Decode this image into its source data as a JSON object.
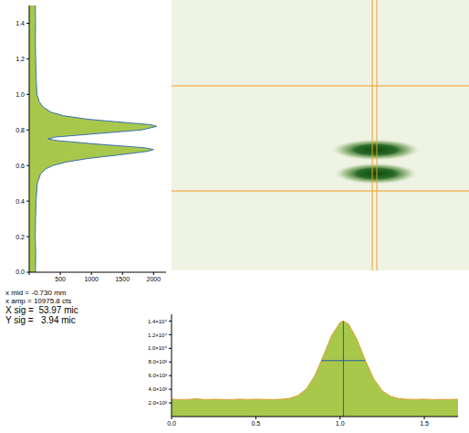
{
  "chart_data": [
    {
      "type": "area",
      "orientation": "horizontal",
      "color": "#a8c84c",
      "y": [
        0,
        0.1,
        0.2,
        0.3,
        0.4,
        0.5,
        0.55,
        0.58,
        0.6,
        0.62,
        0.64,
        0.66,
        0.68,
        0.69,
        0.7,
        0.72,
        0.74,
        0.75,
        0.76,
        0.78,
        0.8,
        0.82,
        0.83,
        0.84,
        0.86,
        0.88,
        0.9,
        0.93,
        0.96,
        1.0,
        1.1,
        1.2,
        1.3,
        1.4,
        1.5
      ],
      "values": [
        100,
        105,
        98,
        102,
        110,
        130,
        180,
        260,
        380,
        600,
        950,
        1450,
        1900,
        2000,
        1850,
        1100,
        450,
        300,
        420,
        1100,
        1800,
        2050,
        1950,
        1600,
        950,
        550,
        350,
        220,
        160,
        125,
        110,
        104,
        100,
        102,
        99
      ],
      "xlim": [
        0,
        2200
      ],
      "xticks": [
        0,
        500,
        1000,
        1500,
        2000
      ],
      "ylim": [
        0,
        1.5
      ],
      "yticks": [
        {
          "value": 0,
          "label": "0.0"
        },
        {
          "value": 0.2,
          "label": "0.2"
        },
        {
          "value": 0.4,
          "label": "0.4"
        },
        {
          "value": 0.6,
          "label": "0.6"
        },
        {
          "value": 0.8,
          "label": "0.8"
        },
        {
          "value": 1,
          "label": "1.0"
        },
        {
          "value": 1.2,
          "label": "1.2"
        },
        {
          "value": 1.4,
          "label": "1.4"
        }
      ]
    },
    {
      "type": "area",
      "color": "#a8c84c",
      "x": [
        0,
        0.05,
        0.1,
        0.15,
        0.2,
        0.25,
        0.3,
        0.35,
        0.4,
        0.45,
        0.5,
        0.55,
        0.6,
        0.65,
        0.7,
        0.75,
        0.8,
        0.85,
        0.9,
        0.95,
        1.0,
        1.02,
        1.05,
        1.1,
        1.15,
        1.2,
        1.25,
        1.3,
        1.35,
        1.4,
        1.45,
        1.5,
        1.55,
        1.6,
        1.65,
        1.7
      ],
      "values": [
        2550,
        2480,
        2520,
        2600,
        2490,
        2530,
        2510,
        2470,
        2560,
        2500,
        2540,
        2520,
        2490,
        2540,
        2670,
        3070,
        4060,
        5990,
        8850,
        11890,
        13810,
        14000,
        13580,
        11330,
        8220,
        5510,
        3790,
        2950,
        2630,
        2530,
        2510,
        2560,
        2480,
        2520,
        2500,
        2540
      ],
      "xlim": [
        0,
        1.7
      ],
      "xticks": [
        {
          "value": 0,
          "label": "0.0"
        },
        {
          "value": 0.5,
          "label": "0.5"
        },
        {
          "value": 1,
          "label": "1.0"
        },
        {
          "value": 1.5,
          "label": "1.5"
        }
      ],
      "ylim": [
        0,
        15000
      ],
      "yticks": [
        {
          "value": 2000,
          "label": "2.0×10³"
        },
        {
          "value": 4000,
          "label": "4.0×10³"
        },
        {
          "value": 6000,
          "label": "6.0×10³"
        },
        {
          "value": 8000,
          "label": "8.0×10³"
        },
        {
          "value": 10000,
          "label": "1.0×10⁴"
        },
        {
          "value": 12000,
          "label": "1.2×10⁴"
        },
        {
          "value": 14000,
          "label": "1.4×10⁴"
        }
      ],
      "peak_line_x": 1.02,
      "half_max_line": {
        "x": [
          0.89,
          1.15
        ],
        "y": 8200
      }
    }
  ],
  "annotations": [
    "x mid = -0.730 mm",
    "x amp = 10975.8 cts",
    "X sig =  53.97 mic",
    "Y sig =   3.94 mic"
  ]
}
